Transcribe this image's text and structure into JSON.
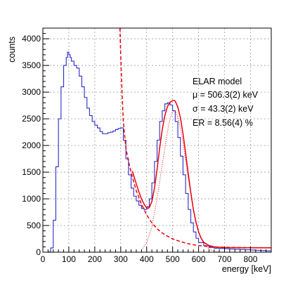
{
  "chart_data": {
    "type": "line",
    "title": "",
    "xlabel": "energy [keV]",
    "ylabel": "counts",
    "xlim": [
      0,
      880
    ],
    "ylim": [
      0,
      4200
    ],
    "x_ticks": [
      0,
      100,
      200,
      300,
      400,
      500,
      600,
      700,
      800
    ],
    "x_tick_labels": [
      "0",
      "100",
      "200",
      "300",
      "400",
      "500",
      "600",
      "700",
      "800"
    ],
    "y_ticks": [
      0,
      500,
      1000,
      1500,
      2000,
      2500,
      3000,
      3500,
      4000
    ],
    "y_tick_labels": [
      "0",
      "500",
      "1000",
      "1500",
      "2000",
      "2500",
      "3000",
      "3500",
      "4000"
    ],
    "grid": true,
    "annotations": [
      "ELAR model",
      "μ = 506.3(2) keV",
      "σ = 43.3(2) keV",
      "ER = 8.56(4) %"
    ],
    "series": [
      {
        "style": "histogram",
        "color": "#2b2bc8",
        "x": [
          0,
          20,
          30,
          40,
          50,
          60,
          70,
          80,
          90,
          95,
          100,
          105,
          110,
          120,
          130,
          140,
          150,
          160,
          170,
          180,
          190,
          200,
          210,
          220,
          230,
          240,
          250,
          260,
          270,
          280,
          290,
          300,
          310,
          320,
          330,
          340,
          350,
          360,
          370,
          380,
          390,
          400,
          410,
          420,
          430,
          440,
          450,
          460,
          470,
          480,
          490,
          500,
          510,
          520,
          530,
          540,
          550,
          560,
          570,
          580,
          590,
          600,
          620,
          640,
          660,
          680,
          700,
          720,
          740,
          760,
          780,
          800,
          820,
          840,
          860,
          880
        ],
        "y": [
          0,
          5,
          80,
          600,
          1600,
          2500,
          3100,
          3500,
          3650,
          3750,
          3700,
          3650,
          3580,
          3500,
          3450,
          3300,
          3100,
          2900,
          2700,
          2560,
          2450,
          2380,
          2330,
          2260,
          2220,
          2220,
          2240,
          2250,
          2270,
          2300,
          2320,
          2330,
          2100,
          1750,
          1450,
          1200,
          1050,
          960,
          880,
          820,
          800,
          850,
          1000,
          1300,
          1700,
          2100,
          2450,
          2650,
          2780,
          2800,
          2760,
          2650,
          2450,
          2150,
          1800,
          1450,
          1100,
          800,
          550,
          380,
          260,
          180,
          120,
          90,
          75,
          70,
          65,
          60,
          55,
          50,
          45,
          40,
          35,
          30,
          25,
          20
        ]
      },
      {
        "style": "solid",
        "color": "#e8000b",
        "x": [
          345,
          350,
          360,
          370,
          380,
          390,
          400,
          405,
          410,
          420,
          430,
          440,
          450,
          460,
          470,
          480,
          490,
          500,
          506,
          510,
          520,
          530,
          540,
          550,
          560,
          570,
          580,
          590,
          600,
          610,
          620,
          640,
          660,
          680,
          700,
          720,
          740,
          760,
          780,
          800,
          820,
          840,
          860,
          880
        ],
        "y": [
          1520,
          1440,
          1280,
          1130,
          1000,
          900,
          830,
          820,
          835,
          950,
          1200,
          1550,
          1950,
          2300,
          2560,
          2730,
          2810,
          2840,
          2845,
          2830,
          2720,
          2520,
          2220,
          1860,
          1480,
          1120,
          800,
          560,
          380,
          260,
          185,
          125,
          100,
          92,
          88,
          86,
          85,
          84,
          83,
          83,
          82,
          82,
          82,
          82
        ]
      },
      {
        "style": "dashed",
        "color": "#e8000b",
        "x": [
          297,
          300,
          305,
          310,
          320,
          330,
          340,
          350,
          360,
          380,
          400,
          420,
          440,
          460,
          480,
          500,
          520,
          540,
          560,
          580,
          600,
          640,
          680,
          720,
          760,
          800,
          840,
          880
        ],
        "y": [
          4200,
          3700,
          3000,
          2450,
          1950,
          1700,
          1500,
          1320,
          1150,
          900,
          700,
          550,
          440,
          360,
          300,
          250,
          215,
          185,
          160,
          140,
          125,
          105,
          95,
          90,
          87,
          85,
          84,
          83
        ]
      },
      {
        "style": "dotted",
        "color": "#e8000b",
        "x": [
          380,
          400,
          420,
          440,
          460,
          480,
          490,
          500,
          506,
          510,
          520,
          530,
          540,
          560,
          580,
          600,
          620,
          640,
          660,
          680
        ],
        "y": [
          40,
          180,
          480,
          1000,
          1650,
          2250,
          2500,
          2640,
          2660,
          2650,
          2530,
          2320,
          2050,
          1380,
          800,
          380,
          160,
          60,
          20,
          5
        ]
      }
    ]
  }
}
